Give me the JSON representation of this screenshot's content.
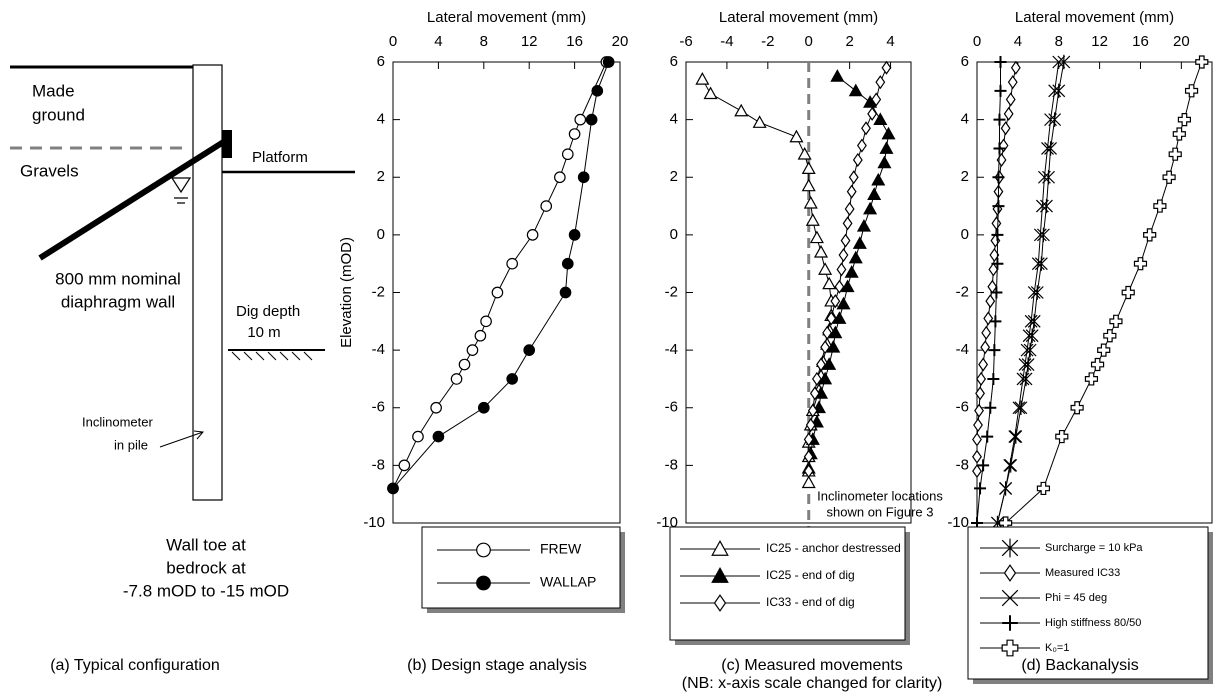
{
  "diagram": {
    "labels": [
      "Made",
      "ground",
      "Gravels",
      "Platform",
      "800 mm nominal",
      "diaphragm wall",
      "Dig depth",
      "10 m",
      "Inclinometer",
      "in pile",
      "Wall toe at",
      "bedrock at",
      "-7.8 mOD to -15 mOD"
    ],
    "caption": "(a) Typical configuration"
  },
  "chart_data": [
    {
      "type": "line",
      "x_label": "Lateral movement (mm)",
      "y_label": "Elevation (mOD)",
      "caption": [
        "(b) Design stage analysis"
      ],
      "xlim": [
        0,
        20
      ],
      "ylim": [
        -10,
        6
      ],
      "xticks": [
        0,
        4,
        8,
        12,
        16,
        20
      ],
      "yticks": [
        6,
        4,
        2,
        0,
        -2,
        -4,
        -6,
        -8,
        -10
      ],
      "series": [
        {
          "name": "FREW",
          "marker": "circle",
          "color": "#000000",
          "fill": "#ffffff",
          "x": [
            18.8,
            16.5,
            16,
            15.4,
            14.7,
            13.5,
            12.3,
            10.5,
            9.2,
            8.2,
            7.7,
            7,
            6.3,
            5.6,
            3.8,
            2.2,
            1,
            0
          ],
          "values": [
            6,
            4,
            3.5,
            2.8,
            2,
            1,
            0,
            -1,
            -2,
            -3,
            -3.5,
            -4,
            -4.5,
            -5,
            -6,
            -7,
            -8,
            -8.8
          ]
        },
        {
          "name": "WALLAP",
          "marker": "circle",
          "color": "#000000",
          "fill": "#000000",
          "x": [
            19,
            18,
            17.5,
            16.8,
            16,
            15.4,
            15.2,
            12,
            10.5,
            8,
            4,
            0
          ],
          "values": [
            6,
            5,
            4,
            2,
            0,
            -1,
            -2,
            -4,
            -5,
            -6,
            -7,
            -8.8
          ]
        }
      ]
    },
    {
      "type": "line",
      "x_label": "Lateral movement (mm)",
      "caption": [
        "(c) Measured movements",
        "(NB: x-axis scale changed for clarity)"
      ],
      "annotation": [
        "Inclinometer locations",
        "shown on Figure 3"
      ],
      "reference_x": 0,
      "reference_color": "#808080",
      "xlim": [
        -6,
        5
      ],
      "ylim": [
        -10,
        6
      ],
      "xticks": [
        -6,
        -4,
        -2,
        0,
        2,
        4
      ],
      "yticks": [
        6,
        4,
        2,
        0,
        -2,
        -4,
        -6,
        -8,
        -10
      ],
      "series": [
        {
          "name": "IC25 - anchor destressed",
          "marker": "triangle",
          "color": "#000000",
          "fill": "#ffffff",
          "x": [
            -5.2,
            -4.8,
            -3.3,
            -2.4,
            -0.6,
            -0.2,
            0,
            0,
            0.1,
            0.2,
            0.4,
            0.6,
            0.8,
            1,
            1.1,
            1.1,
            1,
            0.9,
            0.7,
            0.6,
            0.5,
            0.2,
            0.1,
            0,
            0,
            0,
            0
          ],
          "values": [
            5.4,
            4.9,
            4.3,
            3.9,
            3.4,
            2.8,
            2.3,
            1.7,
            1.1,
            0.5,
            -0.1,
            -0.6,
            -1.2,
            -1.7,
            -2.3,
            -2.8,
            -3.3,
            -3.8,
            -4.4,
            -4.9,
            -5.4,
            -6.1,
            -6.6,
            -7.2,
            -7.7,
            -8.2,
            -8.6
          ]
        },
        {
          "name": "IC25 - end of dig",
          "marker": "triangle",
          "color": "#000000",
          "fill": "#000000",
          "x": [
            1.4,
            2.3,
            3,
            3.5,
            3.9,
            3.8,
            3.7,
            3.4,
            3.2,
            3,
            2.7,
            2.5,
            2.3,
            2.1,
            1.9,
            1.7,
            1.5,
            1.3,
            1.2,
            1,
            0.8,
            0.6,
            0.5,
            0.4,
            0.2,
            0.1,
            0
          ],
          "values": [
            5.5,
            5,
            4.6,
            4,
            3.5,
            3,
            2.5,
            1.9,
            1.4,
            0.9,
            0.3,
            -0.3,
            -0.8,
            -1.3,
            -1.8,
            -2.4,
            -2.9,
            -3.4,
            -3.9,
            -4.5,
            -5,
            -5.5,
            -6,
            -6.5,
            -7.1,
            -7.6,
            -8.1
          ]
        },
        {
          "name": "IC33 - end of dig",
          "marker": "diamond",
          "color": "#000000",
          "fill": "#ffffff",
          "x": [
            3.8,
            3.5,
            3.3,
            3.1,
            2.8,
            2.6,
            2.4,
            2.2,
            2.1,
            2,
            1.9,
            1.8,
            1.7,
            1.6,
            1.5,
            1.3,
            1.1,
            0.9,
            0.8,
            0.6,
            0.4,
            0.3,
            0.2,
            0.1,
            0,
            0,
            0
          ],
          "values": [
            5.8,
            5.3,
            4.7,
            4.2,
            3.7,
            3.1,
            2.6,
            2,
            1.5,
            0.9,
            0.4,
            -0.2,
            -0.7,
            -1.2,
            -1.8,
            -2.3,
            -2.9,
            -3.4,
            -3.9,
            -4.5,
            -5,
            -5.5,
            -6.1,
            -6.6,
            -7.1,
            -7.7,
            -8.2
          ]
        }
      ]
    },
    {
      "type": "line",
      "x_label": "Lateral movement (mm)",
      "caption": [
        "(d) Backanalysis"
      ],
      "xlim": [
        0,
        23
      ],
      "ylim": [
        -10,
        6
      ],
      "xticks": [
        0,
        4,
        8,
        12,
        16,
        20
      ],
      "yticks": [
        6,
        4,
        2,
        0,
        -2,
        -4,
        -6,
        -8,
        -10
      ],
      "series": [
        {
          "name": "Surcharge = 10 kPa",
          "marker": "asterisk",
          "color": "#000000",
          "fill": "#ffffff",
          "x": [
            8.5,
            8,
            7.6,
            7.2,
            7,
            6.8,
            6.5,
            6.3,
            5.9,
            5.6,
            5.4,
            5.2,
            5,
            4.8,
            4.3,
            3.8,
            3.3,
            2.8,
            2
          ],
          "values": [
            6,
            5,
            4,
            3,
            2,
            1,
            0,
            -1,
            -2,
            -3,
            -3.5,
            -4,
            -4.5,
            -5,
            -6,
            -7,
            -8,
            -8.8,
            -10
          ]
        },
        {
          "name": "Measured IC33",
          "marker": "diamond",
          "color": "#000000",
          "fill": "#ffffff",
          "x": [
            3.8,
            3.5,
            3.3,
            3.1,
            2.8,
            2.6,
            2.4,
            2.2,
            2.1,
            2,
            1.9,
            1.8,
            1.7,
            1.6,
            1.5,
            1.3,
            1.1,
            0.9,
            0.8,
            0.6,
            0.4,
            0.3,
            0.2,
            0.1,
            0,
            0,
            0
          ],
          "values": [
            5.8,
            5.3,
            4.7,
            4.2,
            3.7,
            3.1,
            2.6,
            2,
            1.5,
            0.9,
            0.4,
            -0.2,
            -0.7,
            -1.2,
            -1.8,
            -2.3,
            -2.9,
            -3.4,
            -3.9,
            -4.5,
            -5,
            -5.5,
            -6.1,
            -6.6,
            -7.1,
            -7.7,
            -8.2
          ]
        },
        {
          "name": "Phi = 45 deg",
          "marker": "x",
          "color": "#000000",
          "fill": "#ffffff",
          "x": [
            8,
            7.6,
            7.2,
            6.9,
            6.6,
            6.4,
            6.2,
            6,
            5.6,
            5.3,
            5.1,
            4.9,
            4.7,
            4.5,
            4.1,
            3.7,
            3.2,
            2.8,
            2
          ],
          "values": [
            6,
            5,
            4,
            3,
            2,
            1,
            0,
            -1,
            -2,
            -3,
            -3.5,
            -4,
            -4.5,
            -5,
            -6,
            -7,
            -8,
            -8.8,
            -10
          ]
        },
        {
          "name": "High stiffness 80/50",
          "marker": "plus",
          "color": "#000000",
          "fill": "#ffffff",
          "x": [
            2.3,
            2.3,
            2.2,
            2.2,
            2.1,
            2.1,
            2,
            2,
            1.9,
            1.8,
            1.7,
            1.6,
            1.3,
            1,
            0.6,
            0.3,
            0
          ],
          "values": [
            6,
            5,
            4,
            3,
            2,
            1,
            0,
            -1,
            -2,
            -3,
            -4,
            -5,
            -6,
            -7,
            -8,
            -8.8,
            -10
          ]
        },
        {
          "name": "K₀=1",
          "marker": "cross",
          "color": "#000000",
          "fill": "#ffffff",
          "x": [
            22,
            21,
            20.3,
            19.8,
            19.4,
            18.8,
            17.9,
            16.9,
            16,
            14.8,
            13.6,
            13,
            12.4,
            11.8,
            11.2,
            9.8,
            8.3,
            6.5,
            2.8
          ],
          "values": [
            6,
            5,
            4,
            3.5,
            2.8,
            2,
            1,
            0,
            -1,
            -2,
            -3,
            -3.5,
            -4,
            -4.5,
            -5,
            -6,
            -7,
            -8.8,
            -10
          ]
        }
      ]
    }
  ]
}
